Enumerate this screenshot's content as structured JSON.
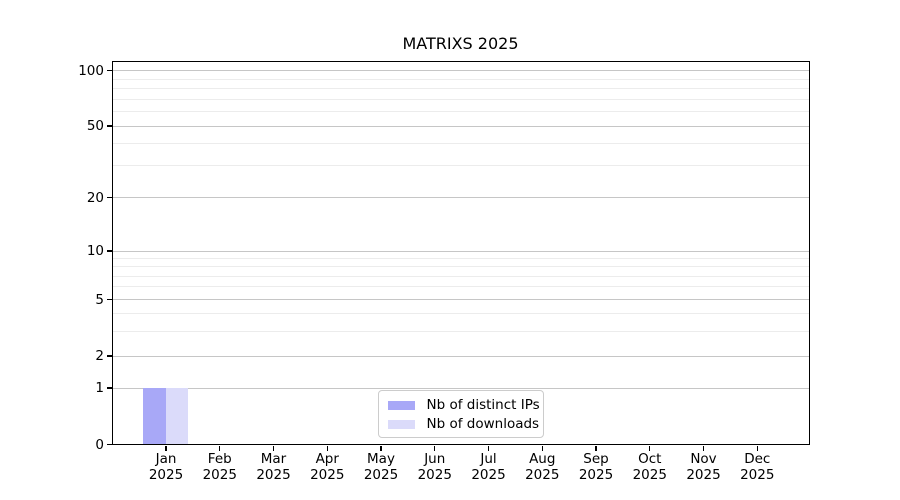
{
  "chart_data": {
    "type": "bar",
    "title": "MATRIXS 2025",
    "categories": [
      "Jan",
      "Feb",
      "Mar",
      "Apr",
      "May",
      "Jun",
      "Jul",
      "Aug",
      "Sep",
      "Oct",
      "Nov",
      "Dec"
    ],
    "category_year": "2025",
    "series": [
      {
        "name": "Nb of distinct IPs",
        "color": "#a8a8f7",
        "values": [
          1,
          0,
          0,
          0,
          0,
          0,
          0,
          0,
          0,
          0,
          0,
          0
        ]
      },
      {
        "name": "Nb of downloads",
        "color": "#dbdbfa",
        "values": [
          1,
          0,
          0,
          0,
          0,
          0,
          0,
          0,
          0,
          0,
          0,
          0
        ]
      }
    ],
    "xlabel": "",
    "ylabel": "",
    "y_axis": {
      "scale": "log-like-with-zero",
      "major_ticks": [
        0,
        1,
        2,
        5,
        10,
        20,
        50,
        100
      ],
      "minor_gridlines": [
        3,
        4,
        6,
        7,
        8,
        9,
        30,
        40,
        60,
        70,
        80,
        90
      ],
      "ylim": [
        0,
        115
      ]
    },
    "grid": "both",
    "legend": {
      "position": "lower-center-inside",
      "entries": [
        "Nb of distinct IPs",
        "Nb of downloads"
      ]
    },
    "colors": {
      "axis": "#000000",
      "grid_major": "#c6c6c6",
      "grid_minor": "#ececec",
      "background": "#ffffff"
    }
  }
}
